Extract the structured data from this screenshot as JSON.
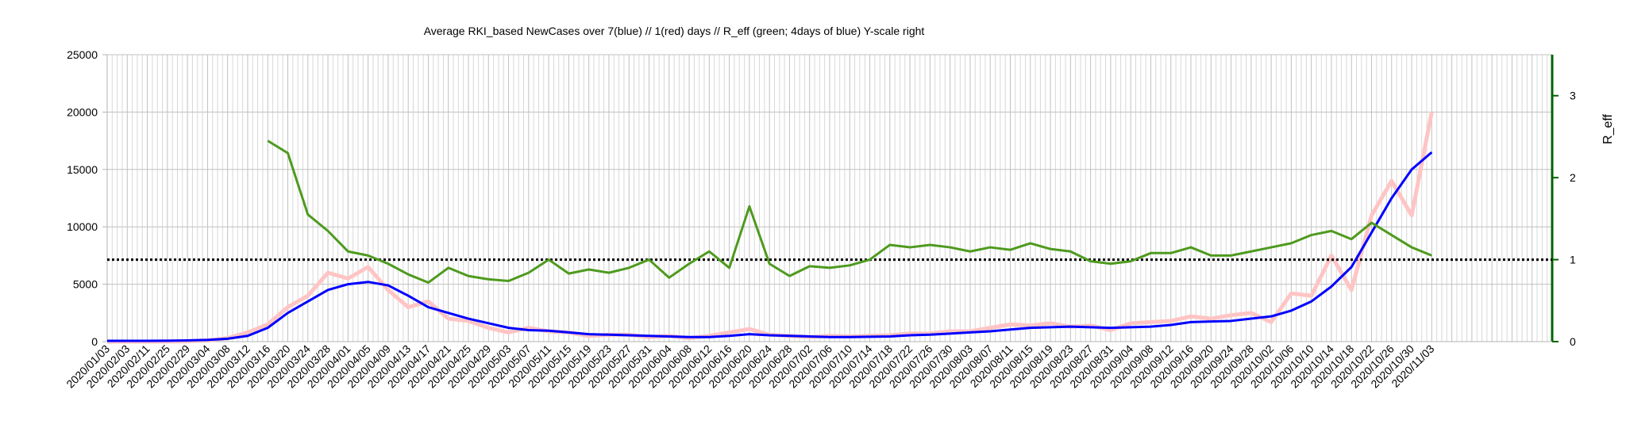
{
  "chart_data": {
    "type": "line",
    "title": "Average RKI_based NewCases over 7(blue) // 1(red) days //  R_eff (green; 4days of blue) Y-scale right",
    "y2label": "R_eff",
    "categories": [
      "2020/01/03",
      "2020/02/03",
      "2020/02/11",
      "2020/02/25",
      "2020/02/29",
      "2020/03/04",
      "2020/03/08",
      "2020/03/12",
      "2020/03/16",
      "2020/03/20",
      "2020/03/24",
      "2020/03/28",
      "2020/04/01",
      "2020/04/05",
      "2020/04/09",
      "2020/04/13",
      "2020/04/17",
      "2020/04/21",
      "2020/04/25",
      "2020/04/29",
      "2020/05/03",
      "2020/05/07",
      "2020/05/11",
      "2020/05/15",
      "2020/05/19",
      "2020/05/23",
      "2020/05/27",
      "2020/05/31",
      "2020/06/04",
      "2020/06/08",
      "2020/06/12",
      "2020/06/16",
      "2020/06/20",
      "2020/06/24",
      "2020/06/28",
      "2020/07/02",
      "2020/07/06",
      "2020/07/10",
      "2020/07/14",
      "2020/07/18",
      "2020/07/22",
      "2020/07/26",
      "2020/07/30",
      "2020/08/03",
      "2020/08/07",
      "2020/08/11",
      "2020/08/15",
      "2020/08/19",
      "2020/08/23",
      "2020/08/27",
      "2020/08/31",
      "2020/09/04",
      "2020/09/08",
      "2020/09/12",
      "2020/09/16",
      "2020/09/20",
      "2020/09/24",
      "2020/09/28",
      "2020/10/02",
      "2020/10/06",
      "2020/10/10",
      "2020/10/14",
      "2020/10/18",
      "2020/10/22",
      "2020/10/26",
      "2020/10/30",
      "2020/11/03",
      null,
      null,
      null,
      null,
      null,
      null
    ],
    "series": [
      {
        "name": "1 day",
        "color": "#ffc4c4",
        "width": 5,
        "values": [
          0,
          0,
          0,
          10,
          30,
          100,
          300,
          800,
          1500,
          3000,
          4000,
          6000,
          5500,
          6500,
          4500,
          3000,
          3500,
          2000,
          1800,
          1200,
          800,
          1200,
          900,
          800,
          500,
          600,
          600,
          400,
          500,
          300,
          500,
          800,
          1100,
          600,
          500,
          400,
          500,
          450,
          500,
          550,
          700,
          700,
          900,
          900,
          1200,
          1500,
          1400,
          1600,
          1300,
          1400,
          1000,
          1600,
          1700,
          1800,
          2200,
          2000,
          2300,
          2500,
          1700,
          4200,
          4000,
          7500,
          4500,
          11000,
          14000,
          11000,
          20000,
          null,
          null,
          null,
          null,
          null,
          null
        ]
      },
      {
        "name": "7 days",
        "color": "#0000ff",
        "width": 3,
        "values": [
          70,
          70,
          70,
          80,
          100,
          150,
          250,
          500,
          1200,
          2500,
          3500,
          4500,
          5000,
          5200,
          4900,
          4000,
          3000,
          2500,
          2000,
          1600,
          1200,
          1000,
          950,
          800,
          650,
          600,
          550,
          500,
          450,
          400,
          400,
          500,
          650,
          550,
          500,
          450,
          400,
          400,
          420,
          450,
          550,
          600,
          700,
          800,
          900,
          1050,
          1200,
          1250,
          1300,
          1250,
          1200,
          1250,
          1300,
          1450,
          1700,
          1750,
          1800,
          2000,
          2200,
          2700,
          3500,
          4800,
          6500,
          9500,
          12500,
          15000,
          16500,
          null,
          null,
          null,
          null,
          null,
          null
        ]
      },
      {
        "name": "R_eff",
        "color": "#4e9a1e",
        "width": 3,
        "axis": "y2",
        "values": [
          null,
          null,
          null,
          null,
          null,
          null,
          null,
          null,
          2.45,
          2.3,
          1.55,
          1.35,
          1.1,
          1.05,
          0.95,
          0.82,
          0.72,
          0.9,
          0.8,
          0.76,
          0.74,
          0.84,
          1.0,
          0.83,
          0.88,
          0.84,
          0.9,
          1.0,
          0.78,
          0.95,
          1.1,
          0.9,
          1.65,
          0.95,
          0.8,
          0.92,
          0.9,
          0.93,
          1.0,
          1.18,
          1.15,
          1.18,
          1.15,
          1.1,
          1.15,
          1.12,
          1.2,
          1.13,
          1.1,
          0.98,
          0.95,
          0.98,
          1.08,
          1.08,
          1.15,
          1.05,
          1.05,
          1.1,
          1.15,
          1.2,
          1.3,
          1.35,
          1.25,
          1.45,
          1.3,
          1.15,
          1.05,
          null,
          null,
          null,
          null,
          null,
          null
        ]
      }
    ],
    "ylim": [
      0,
      25000
    ],
    "yticks": [
      0,
      5000,
      10000,
      15000,
      20000,
      25000
    ],
    "y2lim": [
      0,
      3.5
    ],
    "y2ticks": [
      0,
      1,
      2,
      3
    ],
    "y2_axis_color": "#006400",
    "reference_line": {
      "axis": "y2",
      "value": 1,
      "color": "#000000"
    },
    "grid": true
  }
}
